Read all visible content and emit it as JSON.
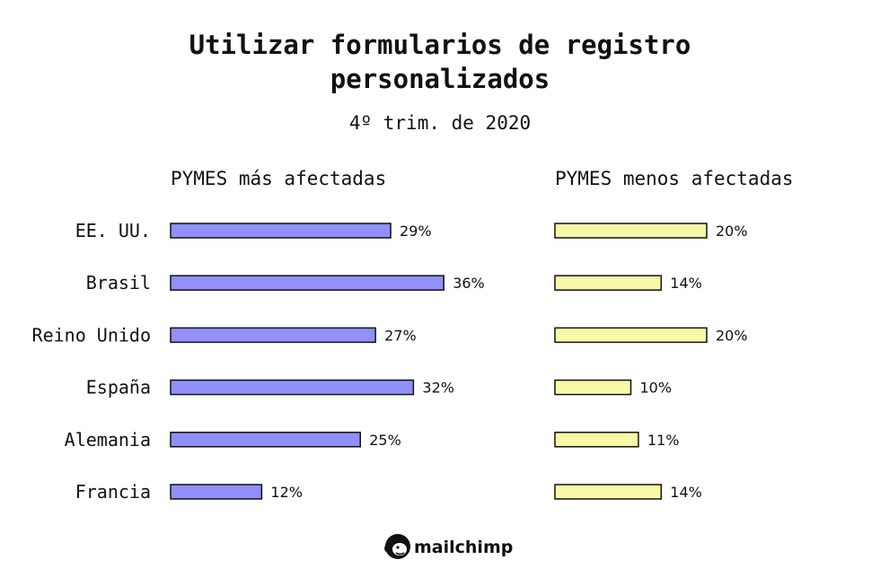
{
  "chart_data": {
    "type": "bar",
    "title_lines": [
      "Utilizar formularios de registro",
      "personalizados"
    ],
    "subtitle": "4º trim. de 2020",
    "categories": [
      "EE. UU.",
      "Brasil",
      "Reino Unido",
      "España",
      "Alemania",
      "Francia"
    ],
    "value_format": "{v}%",
    "orientation": "horizontal",
    "series": [
      {
        "name": "PYMES más afectadas",
        "values": [
          29,
          36,
          27,
          32,
          25,
          12
        ],
        "labels": [
          "29%",
          "36%",
          "27%",
          "32%",
          "25%",
          "12%"
        ],
        "color": "#9090f8"
      },
      {
        "name": "PYMES menos afectadas",
        "values": [
          20,
          14,
          20,
          10,
          11,
          14
        ],
        "labels": [
          "20%",
          "14%",
          "20%",
          "10%",
          "11%",
          "14%"
        ],
        "color": "#f8f8a8"
      }
    ]
  },
  "brand": {
    "name": "mailchimp",
    "logo_icon": "freddie-chimp-icon"
  }
}
